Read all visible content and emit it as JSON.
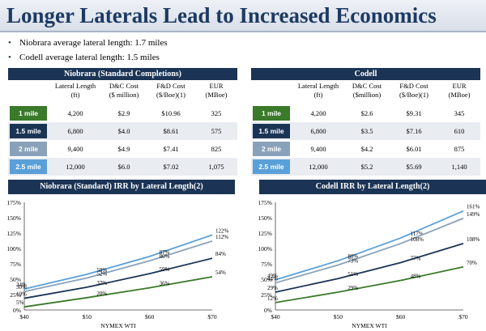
{
  "title": "Longer Laterals Lead to Increased Economics",
  "bullets": [
    "Niobrara average lateral length: 1.7 miles",
    "Codell average lateral length: 1.5 miles"
  ],
  "colors": {
    "mile1": "#3a7a2a",
    "mile15": "#1b3455",
    "mile2": "#8aa2b9",
    "mile25": "#5aa0d8",
    "header": "#1b3455"
  },
  "tables": [
    {
      "title": "Niobrara (Standard Completions)",
      "columns": [
        {
          "line1": "Lateral Length",
          "line2": "(ft)"
        },
        {
          "line1": "D&C Cost",
          "line2": "($ million)"
        },
        {
          "line1": "F&D Cost",
          "line2": "($/Boe)(1)"
        },
        {
          "line1": "EUR",
          "line2": "(MBoe)"
        }
      ],
      "rows": [
        {
          "label": "1 mile",
          "cells": [
            "4,200",
            "$2.9",
            "$10.96",
            "325"
          ]
        },
        {
          "label": "1.5 mile",
          "cells": [
            "6,800",
            "$4.0",
            "$8.61",
            "575"
          ]
        },
        {
          "label": "2 mile",
          "cells": [
            "9,400",
            "$4.9",
            "$7.41",
            "825"
          ]
        },
        {
          "label": "2.5 mile",
          "cells": [
            "12,000",
            "$6.0",
            "$7.02",
            "1,075"
          ]
        }
      ]
    },
    {
      "title": "Codell",
      "columns": [
        {
          "line1": "Lateral Length",
          "line2": "(ft)"
        },
        {
          "line1": "D&C Cost",
          "line2": "($million)"
        },
        {
          "line1": "F&D Cost",
          "line2": "($/Boe)(1)"
        },
        {
          "line1": "EUR",
          "line2": "(MBoe)"
        }
      ],
      "rows": [
        {
          "label": "1 mile",
          "cells": [
            "4,200",
            "$2.6",
            "$9.31",
            "345"
          ]
        },
        {
          "label": "1.5 mile",
          "cells": [
            "6,800",
            "$3.5",
            "$7.16",
            "610"
          ]
        },
        {
          "label": "2 mile",
          "cells": [
            "9,400",
            "$4.2",
            "$6.01",
            "875"
          ]
        },
        {
          "label": "2.5 mile",
          "cells": [
            "12,000",
            "$5.2",
            "$5.69",
            "1,140"
          ]
        }
      ]
    }
  ],
  "chart_data": [
    {
      "type": "line",
      "title": "Niobrara (Standard) IRR by Lateral Length(2)",
      "xlabel": "NYMEX WTI",
      "x_ticks": [
        "$40",
        "$50",
        "$60",
        "$70"
      ],
      "x": [
        40,
        50,
        60,
        70
      ],
      "y_ticks": [
        "0%",
        "25%",
        "50%",
        "75%",
        "100%",
        "125%",
        "150%",
        "175%"
      ],
      "ylim": [
        0,
        175
      ],
      "series": [
        {
          "key": "mile25",
          "values": [
            34,
            58,
            87,
            122
          ],
          "labels": [
            "34%",
            "58%",
            "87%",
            "122%"
          ]
        },
        {
          "key": "mile2",
          "values": [
            30,
            52,
            80,
            112
          ],
          "labels": [
            "30%",
            "52%",
            "80%",
            "112%"
          ]
        },
        {
          "key": "mile15",
          "values": [
            19,
            37,
            59,
            84
          ],
          "labels": [
            "19%",
            "37%",
            "59%",
            "84%"
          ]
        },
        {
          "key": "mile1",
          "values": [
            5,
            20,
            36,
            54
          ],
          "labels": [
            "5%",
            "20%",
            "36%",
            "54%"
          ]
        }
      ]
    },
    {
      "type": "line",
      "title": "Codell IRR by Lateral Length(2)",
      "xlabel": "NYMEX WTI",
      "x_ticks": [
        "$40",
        "$50",
        "$60",
        "$70"
      ],
      "x": [
        40,
        50,
        60,
        70
      ],
      "y_ticks": [
        "0%",
        "25%",
        "50%",
        "75%",
        "100%",
        "125%",
        "150%",
        "175%"
      ],
      "ylim": [
        0,
        175
      ],
      "series": [
        {
          "key": "mile25",
          "values": [
            49,
            80,
            117,
            161
          ],
          "labels": [
            "49%",
            "80%",
            "117%",
            "161%"
          ]
        },
        {
          "key": "mile2",
          "values": [
            44,
            73,
            108,
            149
          ],
          "labels": [
            "44%",
            "73%",
            "108%",
            "149%"
          ]
        },
        {
          "key": "mile15",
          "values": [
            29,
            51,
            77,
            108
          ],
          "labels": [
            "29%",
            "51%",
            "77%",
            "108%"
          ]
        },
        {
          "key": "mile1",
          "values": [
            12,
            29,
            48,
            70
          ],
          "labels": [
            "12%",
            "29%",
            "48%",
            "70%"
          ]
        }
      ]
    }
  ]
}
